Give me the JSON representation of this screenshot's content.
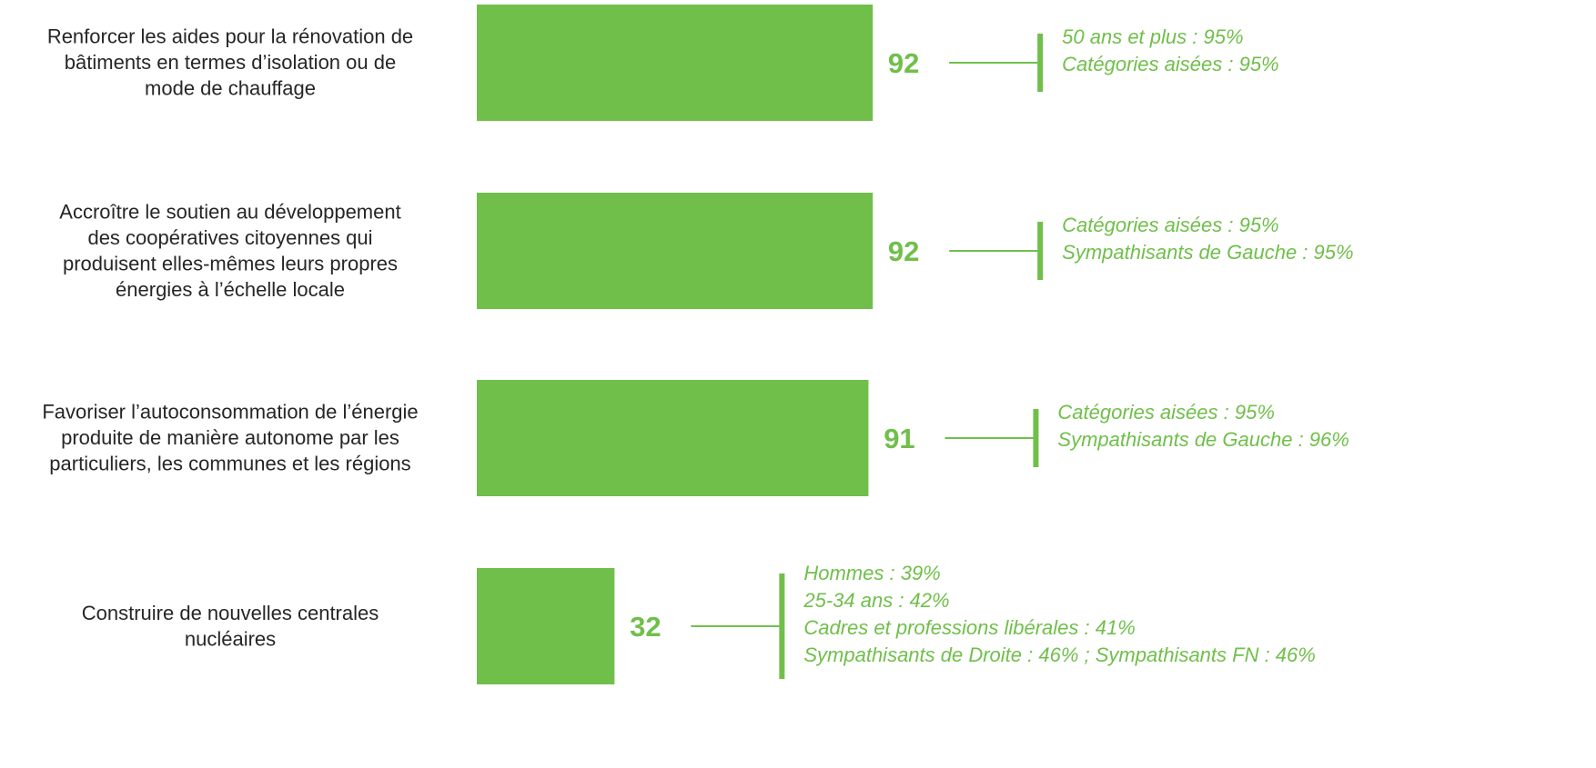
{
  "colors": {
    "bar": "#70bf4a",
    "text": "#262626",
    "accent_text": "#70bf4a"
  },
  "chart_data": {
    "type": "bar",
    "orientation": "horizontal",
    "title": "",
    "xlabel": "",
    "ylabel": "",
    "xlim": [
      0,
      100
    ],
    "grid": false,
    "categories": [
      "Renforcer les aides pour la rénovation de bâtiments en termes d’isolation ou de mode de chauffage",
      "Accroître le soutien au développement des coopératives citoyennes qui produisent elles-mêmes leurs propres énergies à l’échelle locale",
      "Favoriser l’autoconsommation de l’énergie produite de manière autonome par les particuliers, les communes et les régions",
      "Construire de nouvelles centrales nucléaires"
    ],
    "values": [
      92,
      92,
      91,
      32
    ],
    "value_labels": [
      "92",
      "92",
      "91",
      "32"
    ],
    "items": [
      {
        "label_lines": [
          "Renforcer les aides pour la rénovation de",
          "bâtiments en termes d’isolation ou de",
          "mode de chauffage"
        ],
        "value": 92,
        "value_label": "92",
        "annotations": [
          "50 ans et plus : 95%",
          "Catégories aisées : 95%"
        ]
      },
      {
        "label_lines": [
          "Accroître le soutien au développement",
          "des coopératives citoyennes qui",
          "produisent elles-mêmes leurs propres",
          "énergies à l’échelle locale"
        ],
        "value": 92,
        "value_label": "92",
        "annotations": [
          "Catégories aisées : 95%",
          "Sympathisants de Gauche  : 95%"
        ]
      },
      {
        "label_lines": [
          "Favoriser l’autoconsommation de l’énergie",
          "produite de manière autonome par les",
          "particuliers, les communes et les régions"
        ],
        "value": 91,
        "value_label": "91",
        "annotations": [
          "Catégories aisées : 95%",
          "Sympathisants de Gauche  : 96%"
        ]
      },
      {
        "label_lines": [
          "Construire de nouvelles centrales",
          "nucléaires"
        ],
        "value": 32,
        "value_label": "32",
        "annotations": [
          "Hommes : 39%",
          "25-34 ans : 42%",
          "Cadres et professions libérales  : 41%",
          "Sympathisants de Droite  : 46% ; Sympathisants FN : 46%"
        ]
      }
    ]
  }
}
